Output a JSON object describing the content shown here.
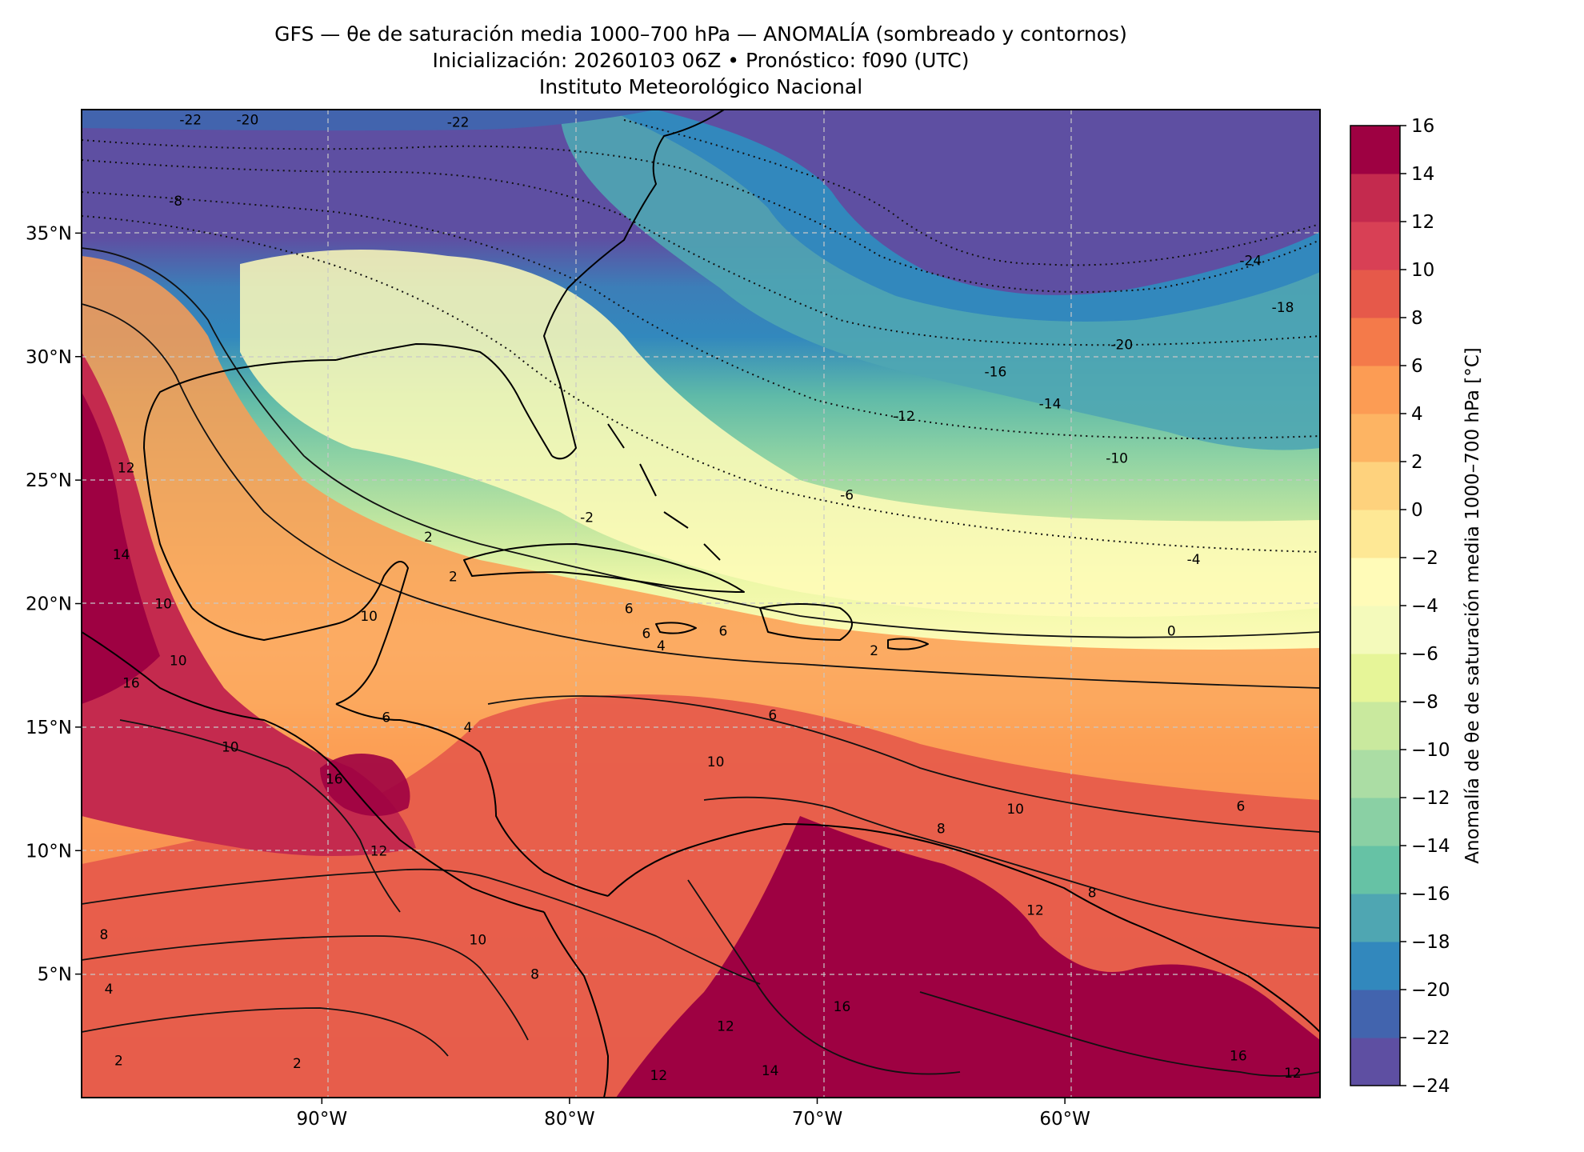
{
  "figure": {
    "title_line1": "GFS — θe de saturación media 1000–700 hPa — ANOMALÍA (sombreado y contornos)",
    "title_line2": "Inicialización: 20260103 06Z   •   Pronóstico: f090 (UTC)",
    "title_line3": "Instituto Meteorológico Nacional"
  },
  "map": {
    "lon_range": [
      -99.7,
      -49.7
    ],
    "lat_range": [
      0.0,
      40.0
    ],
    "lat_ticks": [
      {
        "value": 35,
        "label": "35°N"
      },
      {
        "value": 30,
        "label": "30°N"
      },
      {
        "value": 25,
        "label": "25°N"
      },
      {
        "value": 20,
        "label": "20°N"
      },
      {
        "value": 15,
        "label": "15°N"
      },
      {
        "value": 10,
        "label": "10°N"
      },
      {
        "value": 5,
        "label": "5°N"
      }
    ],
    "lon_ticks": [
      {
        "value": -90,
        "label": "90°W"
      },
      {
        "value": -80,
        "label": "80°W"
      },
      {
        "value": -70,
        "label": "70°W"
      },
      {
        "value": -60,
        "label": "60°W"
      }
    ],
    "gridlines": "dashed light grey",
    "contour_labels": [
      {
        "text": "-22",
        "lon": -95.3,
        "lat": 39.6
      },
      {
        "text": "-20",
        "lon": -93.0,
        "lat": 39.6
      },
      {
        "text": "-22",
        "lon": -84.5,
        "lat": 39.5
      },
      {
        "text": "-8",
        "lon": -95.9,
        "lat": 36.3
      },
      {
        "text": "-24",
        "lon": -52.5,
        "lat": 33.9
      },
      {
        "text": "-18",
        "lon": -51.2,
        "lat": 32.0
      },
      {
        "text": "-20",
        "lon": -57.7,
        "lat": 30.5
      },
      {
        "text": "-16",
        "lon": -62.8,
        "lat": 29.4
      },
      {
        "text": "-14",
        "lon": -60.6,
        "lat": 28.1
      },
      {
        "text": "-12",
        "lon": -66.5,
        "lat": 27.6
      },
      {
        "text": "-10",
        "lon": -57.9,
        "lat": 25.9
      },
      {
        "text": "-6",
        "lon": -68.8,
        "lat": 24.4
      },
      {
        "text": "-2",
        "lon": -79.3,
        "lat": 23.5
      },
      {
        "text": "-4",
        "lon": -54.8,
        "lat": 21.8
      },
      {
        "text": "2",
        "lon": -85.7,
        "lat": 22.7
      },
      {
        "text": "2",
        "lon": -84.7,
        "lat": 21.1
      },
      {
        "text": "0",
        "lon": -55.7,
        "lat": 18.9
      },
      {
        "text": "6",
        "lon": -77.6,
        "lat": 19.8
      },
      {
        "text": "6",
        "lon": -76.9,
        "lat": 18.8
      },
      {
        "text": "6",
        "lon": -73.8,
        "lat": 18.9
      },
      {
        "text": "2",
        "lon": -67.7,
        "lat": 18.1
      },
      {
        "text": "4",
        "lon": -76.3,
        "lat": 18.3
      },
      {
        "text": "6",
        "lon": -71.8,
        "lat": 15.5
      },
      {
        "text": "10",
        "lon": -74.1,
        "lat": 13.6
      },
      {
        "text": "10",
        "lon": -62.0,
        "lat": 11.7
      },
      {
        "text": "6",
        "lon": -52.9,
        "lat": 11.8
      },
      {
        "text": "10",
        "lon": -88.1,
        "lat": 19.5
      },
      {
        "text": "10",
        "lon": -95.8,
        "lat": 17.7
      },
      {
        "text": "16",
        "lon": -97.7,
        "lat": 16.8
      },
      {
        "text": "6",
        "lon": -87.4,
        "lat": 15.4
      },
      {
        "text": "4",
        "lon": -84.1,
        "lat": 15.0
      },
      {
        "text": "10",
        "lon": -93.7,
        "lat": 14.2
      },
      {
        "text": "10",
        "lon": -96.4,
        "lat": 20.0
      },
      {
        "text": "14",
        "lon": -98.1,
        "lat": 22.0
      },
      {
        "text": "12",
        "lon": -97.9,
        "lat": 25.5
      },
      {
        "text": "12",
        "lon": -87.7,
        "lat": 10.0
      },
      {
        "text": "10",
        "lon": -83.7,
        "lat": 6.4
      },
      {
        "text": "8",
        "lon": -81.4,
        "lat": 5.0
      },
      {
        "text": "8",
        "lon": -98.8,
        "lat": 6.6
      },
      {
        "text": "4",
        "lon": -98.6,
        "lat": 4.4
      },
      {
        "text": "16",
        "lon": -89.5,
        "lat": 12.9
      },
      {
        "text": "8",
        "lon": -65.0,
        "lat": 10.9
      },
      {
        "text": "12",
        "lon": -61.2,
        "lat": 7.6
      },
      {
        "text": "8",
        "lon": -58.9,
        "lat": 8.3
      },
      {
        "text": "16",
        "lon": -69.0,
        "lat": 3.7
      },
      {
        "text": "16",
        "lon": -53.0,
        "lat": 1.7
      },
      {
        "text": "12",
        "lon": -50.8,
        "lat": 1.0
      },
      {
        "text": "12",
        "lon": -73.7,
        "lat": 2.9
      },
      {
        "text": "14",
        "lon": -71.9,
        "lat": 1.1
      },
      {
        "text": "12",
        "lon": -76.4,
        "lat": 0.9
      },
      {
        "text": "2",
        "lon": -98.2,
        "lat": 1.5
      },
      {
        "text": "2",
        "lon": -91.0,
        "lat": 1.4
      }
    ]
  },
  "colorbar": {
    "label": "Anomalía de θe de saturación media 1000–700 hPa [°C]",
    "levels": [
      -24,
      -22,
      -20,
      -18,
      -16,
      -14,
      -12,
      -10,
      -8,
      -6,
      -4,
      -2,
      0,
      2,
      4,
      6,
      8,
      10,
      12,
      14,
      16
    ],
    "tick_labels": [
      "−24",
      "−22",
      "−20",
      "−18",
      "−16",
      "−14",
      "−12",
      "−10",
      "−8",
      "−6",
      "−4",
      "−2",
      "0",
      "2",
      "4",
      "6",
      "8",
      "10",
      "12",
      "14",
      "16"
    ],
    "colors": [
      "#5e4fa2",
      "#4264ae",
      "#3288bd",
      "#4fa6b2",
      "#66c2a5",
      "#8ad0a4",
      "#abdda4",
      "#c9e99e",
      "#e6f598",
      "#f4fabb",
      "#fffbb8",
      "#fee895",
      "#fed27d",
      "#fdb463",
      "#fc9c54",
      "#f47a4a",
      "#e6594a",
      "#d84055",
      "#c42a4e",
      "#9e0142"
    ],
    "cmap": "Spectral_r"
  }
}
